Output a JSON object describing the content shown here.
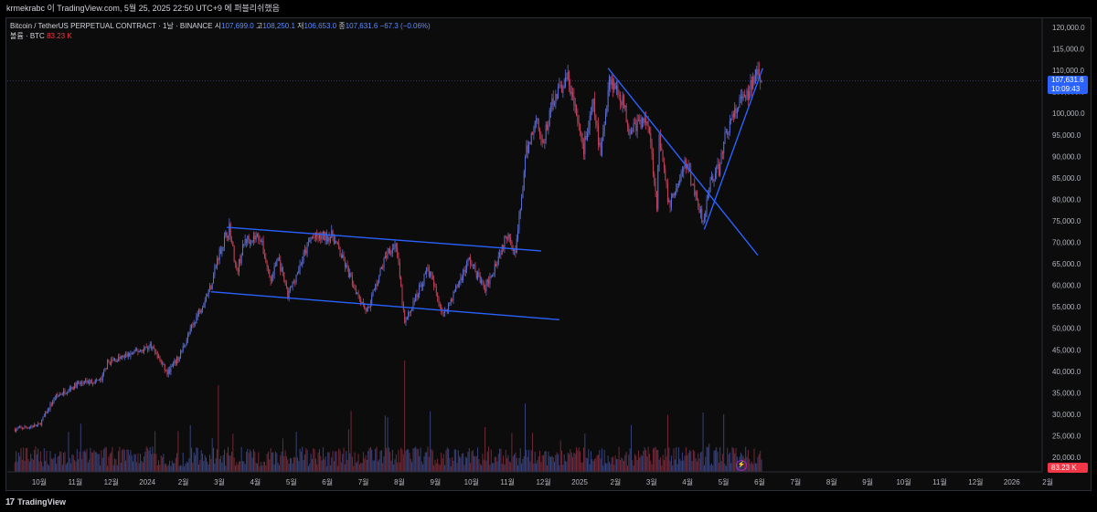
{
  "header": {
    "publisher_line": "krmekrabc 이 TradingView.com, 5월 25, 2025 22:50 UTC+9 에 퍼블리쉬했음"
  },
  "legend": {
    "symbol": "Bitcoin / TetherUS PERPETUAL CONTRACT · 1날 · BINANCE",
    "open_label": "시",
    "open": "107,699.0",
    "high_label": "고",
    "high": "108,250.1",
    "low_label": "저",
    "low": "106,653.0",
    "close_label": "종",
    "close": "107,631.6",
    "change": "−67.3 (−0.06%)",
    "volume_label": "볼륨 · BTC",
    "volume": "83.23 K"
  },
  "price_tag": {
    "price": "107,631.6",
    "countdown": "10:09:43"
  },
  "volume_tag": "83.23 K",
  "footer": {
    "brand": "TradingView",
    "logo_mark": "17"
  },
  "colors": {
    "background": "#0c0c0c",
    "up": "#5b6fd6",
    "down": "#c2425a",
    "trendline": "#2962ff",
    "text": "#d1d4dc"
  },
  "chart_data": {
    "type": "candlestick",
    "interval": "1D",
    "x_ticks": [
      "10월",
      "11월",
      "12월",
      "2024",
      "2월",
      "3월",
      "4월",
      "5월",
      "6월",
      "7월",
      "8월",
      "9월",
      "10월",
      "11월",
      "12월",
      "2025",
      "2월",
      "3월",
      "4월",
      "5월",
      "6월",
      "7월",
      "8월",
      "9월",
      "10월",
      "11월",
      "12월",
      "2026",
      "2월"
    ],
    "y_ticks": [
      "120,000.0",
      "115,000.0",
      "110,000.0",
      "105,000.0",
      "100,000.0",
      "95,000.0",
      "90,000.0",
      "85,000.0",
      "80,000.0",
      "75,000.0",
      "70,000.0",
      "65,000.0",
      "60,000.0",
      "55,000.0",
      "50,000.0",
      "45,000.0",
      "40,000.0",
      "35,000.0",
      "30,000.0",
      "25,000.0",
      "20,000.0"
    ],
    "ylim": [
      20000,
      120000
    ],
    "last_price": 107631.6,
    "price_path": [
      [
        "2023-09-20",
        26500
      ],
      [
        "2023-10-10",
        27500
      ],
      [
        "2023-10-23",
        34000
      ],
      [
        "2023-11-10",
        37000
      ],
      [
        "2023-11-30",
        38000
      ],
      [
        "2023-12-05",
        42000
      ],
      [
        "2023-12-20",
        43500
      ],
      [
        "2024-01-10",
        46000
      ],
      [
        "2024-01-23",
        39500
      ],
      [
        "2024-02-01",
        43000
      ],
      [
        "2024-02-15",
        52000
      ],
      [
        "2024-02-28",
        60000
      ],
      [
        "2024-03-05",
        67000
      ],
      [
        "2024-03-14",
        73500
      ],
      [
        "2024-03-20",
        63000
      ],
      [
        "2024-03-27",
        70500
      ],
      [
        "2024-04-08",
        71500
      ],
      [
        "2024-04-17",
        61000
      ],
      [
        "2024-04-23",
        66500
      ],
      [
        "2024-05-01",
        57500
      ],
      [
        "2024-05-20",
        71000
      ],
      [
        "2024-06-07",
        71500
      ],
      [
        "2024-06-24",
        60000
      ],
      [
        "2024-07-05",
        54000
      ],
      [
        "2024-07-22",
        68000
      ],
      [
        "2024-07-29",
        69500
      ],
      [
        "2024-08-05",
        51000
      ],
      [
        "2024-08-24",
        64000
      ],
      [
        "2024-09-06",
        53000
      ],
      [
        "2024-09-27",
        66000
      ],
      [
        "2024-10-10",
        59000
      ],
      [
        "2024-10-29",
        72500
      ],
      [
        "2024-11-04",
        67500
      ],
      [
        "2024-11-13",
        91000
      ],
      [
        "2024-11-22",
        99500
      ],
      [
        "2024-11-26",
        92000
      ],
      [
        "2024-12-05",
        103500
      ],
      [
        "2024-12-17",
        108200
      ],
      [
        "2024-12-30",
        92000
      ],
      [
        "2025-01-07",
        102000
      ],
      [
        "2025-01-13",
        90000
      ],
      [
        "2025-01-20",
        108500
      ],
      [
        "2025-01-31",
        103000
      ],
      [
        "2025-02-05",
        96500
      ],
      [
        "2025-02-21",
        98500
      ],
      [
        "2025-02-28",
        79000
      ],
      [
        "2025-03-02",
        94000
      ],
      [
        "2025-03-10",
        78500
      ],
      [
        "2025-03-24",
        88500
      ],
      [
        "2025-03-31",
        82000
      ],
      [
        "2025-04-07",
        75000
      ],
      [
        "2025-04-13",
        84500
      ],
      [
        "2025-04-21",
        87500
      ],
      [
        "2025-04-25",
        95000
      ],
      [
        "2025-05-08",
        103000
      ],
      [
        "2025-05-14",
        104000
      ],
      [
        "2025-05-22",
        111500
      ],
      [
        "2025-05-25",
        107631.6
      ]
    ],
    "trendlines": [
      {
        "name": "channel-top",
        "from": [
          "2024-03-12",
          73500
        ],
        "to": [
          "2024-11-25",
          68000
        ]
      },
      {
        "name": "channel-bottom",
        "from": [
          "2024-02-28",
          58500
        ],
        "to": [
          "2024-12-10",
          52000
        ]
      },
      {
        "name": "downtrend",
        "from": [
          "2025-01-19",
          110500
        ],
        "to": [
          "2025-05-22",
          67000
        ]
      },
      {
        "name": "uptrend",
        "from": [
          "2025-04-08",
          73000
        ],
        "to": [
          "2025-05-26",
          110500
        ]
      }
    ]
  }
}
